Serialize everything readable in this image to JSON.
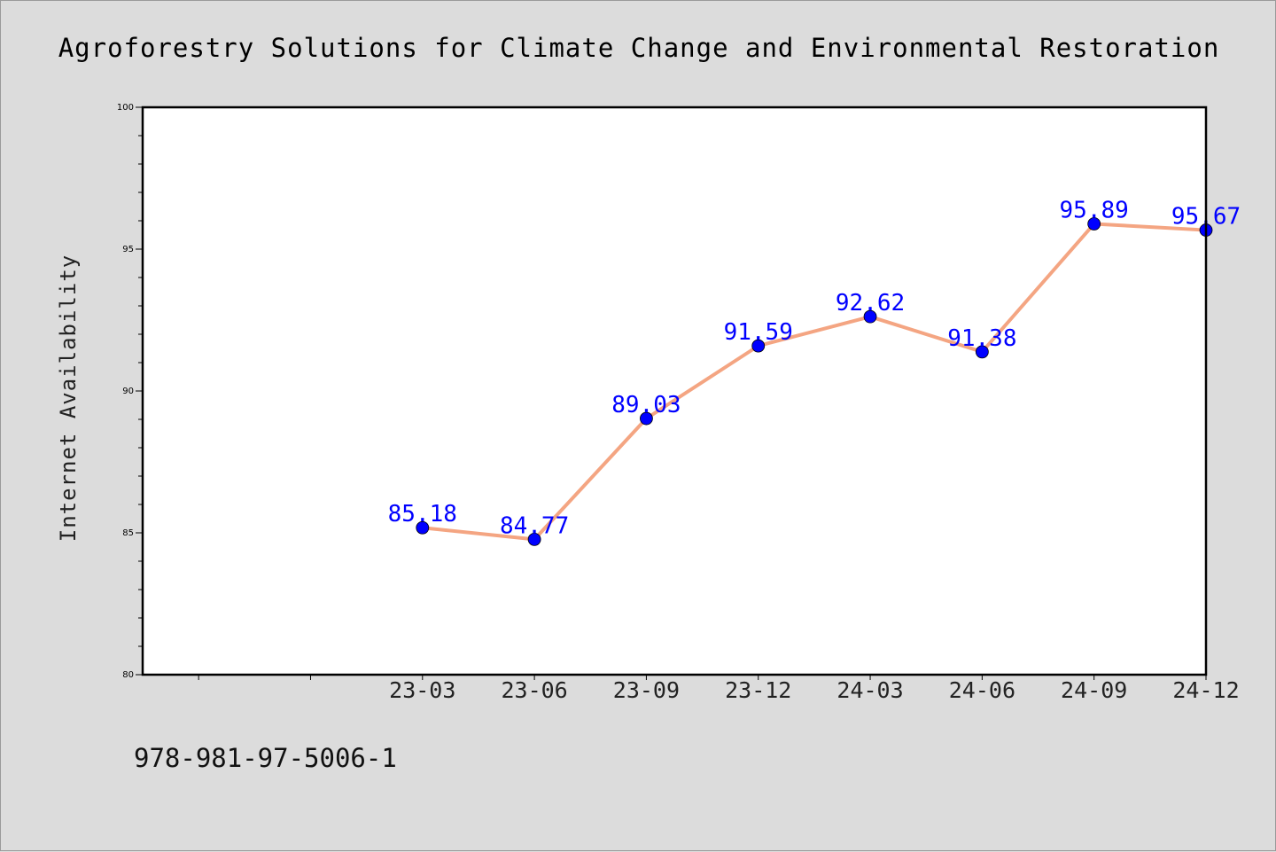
{
  "chart_data": {
    "type": "line",
    "title": "Agroforestry Solutions for Climate Change and Environmental Restoration",
    "xlabel": "",
    "ylabel": "Internet Availability",
    "categories": [
      "23-03",
      "23-06",
      "23-09",
      "23-12",
      "24-03",
      "24-06",
      "24-09",
      "24-12"
    ],
    "series": [
      {
        "values": [
          85.18,
          84.77,
          89.03,
          91.59,
          92.62,
          91.38,
          95.89,
          95.67
        ],
        "data_labels": [
          "85.18",
          "84.77",
          "89.03",
          "91.59",
          "92.62",
          "91.38",
          "95.89",
          "95.67"
        ],
        "line_color": "#f4a582",
        "marker_color": "#0000ff"
      }
    ],
    "ylim": [
      80,
      100
    ],
    "yticks": [
      "80",
      "85",
      "90",
      "95",
      "100"
    ],
    "x_slots_before_first_category": 2,
    "grid": false,
    "legend": "none"
  },
  "footer": {
    "text": "978-981-97-5006-1"
  },
  "colors": {
    "background": "#dcdcdc",
    "plot_background": "#ffffff",
    "data_label": "#0000ff"
  }
}
